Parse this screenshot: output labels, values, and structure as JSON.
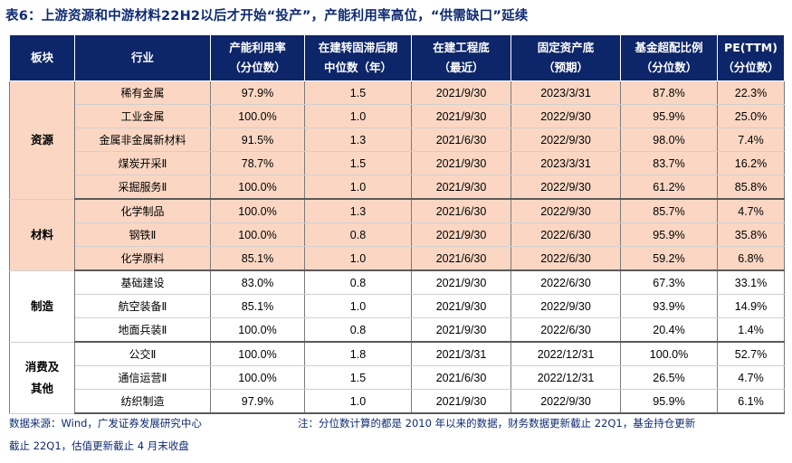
{
  "title": "表6：上游资源和中游材料22H2以后才开始“投产”，产能利用率高位，“供需缺口”延续",
  "header": {
    "sector": "板块",
    "industry": "行业",
    "capacity_util": [
      "产能利用率",
      "（分位数）"
    ],
    "lag": [
      "在建转固滞后期",
      "中位数（年）"
    ],
    "cip_bottom": [
      "在建工程底",
      "（最近）"
    ],
    "fa_bottom": [
      "固定资产底",
      "（预期）"
    ],
    "fund_overweight": [
      "基金超配比例",
      "（分位数）"
    ],
    "pe": [
      "PE(TTM)",
      "（分位数）"
    ]
  },
  "groups": [
    {
      "sector": "资源",
      "rows": [
        {
          "industry": "稀有金属",
          "util": "97.9%",
          "lag": "1.5",
          "cip": "2021/9/30",
          "fa": "2023/3/31",
          "fund": "87.8%",
          "pe": "22.3%"
        },
        {
          "industry": "工业金属",
          "util": "100.0%",
          "lag": "1.0",
          "cip": "2021/9/30",
          "fa": "2022/9/30",
          "fund": "95.9%",
          "pe": "25.0%"
        },
        {
          "industry": "金属非金属新材料",
          "util": "91.5%",
          "lag": "1.3",
          "cip": "2021/6/30",
          "fa": "2022/9/30",
          "fund": "98.0%",
          "pe": "7.4%"
        },
        {
          "industry": "煤炭开采Ⅱ",
          "util": "78.7%",
          "lag": "1.5",
          "cip": "2021/9/30",
          "fa": "2023/3/31",
          "fund": "83.7%",
          "pe": "16.2%"
        },
        {
          "industry": "采掘服务Ⅱ",
          "util": "100.0%",
          "lag": "1.0",
          "cip": "2021/9/30",
          "fa": "2022/9/30",
          "fund": "61.2%",
          "pe": "85.8%"
        }
      ]
    },
    {
      "sector": "材料",
      "rows": [
        {
          "industry": "化学制品",
          "util": "100.0%",
          "lag": "1.3",
          "cip": "2021/6/30",
          "fa": "2022/9/30",
          "fund": "85.7%",
          "pe": "4.7%"
        },
        {
          "industry": "钢铁Ⅱ",
          "util": "100.0%",
          "lag": "0.8",
          "cip": "2021/9/30",
          "fa": "2022/6/30",
          "fund": "95.9%",
          "pe": "35.8%"
        },
        {
          "industry": "化学原料",
          "util": "85.1%",
          "lag": "1.0",
          "cip": "2021/6/30",
          "fa": "2022/6/30",
          "fund": "59.2%",
          "pe": "6.8%"
        }
      ]
    },
    {
      "sector": "制造",
      "rows": [
        {
          "industry": "基础建设",
          "util": "83.0%",
          "lag": "0.8",
          "cip": "2021/9/30",
          "fa": "2022/6/30",
          "fund": "67.3%",
          "pe": "33.1%"
        },
        {
          "industry": "航空装备Ⅱ",
          "util": "85.1%",
          "lag": "1.0",
          "cip": "2021/9/30",
          "fa": "2022/9/30",
          "fund": "93.9%",
          "pe": "14.9%"
        },
        {
          "industry": "地面兵装Ⅱ",
          "util": "100.0%",
          "lag": "0.8",
          "cip": "2021/9/30",
          "fa": "2022/6/30",
          "fund": "20.4%",
          "pe": "1.4%"
        }
      ]
    },
    {
      "sector": "消费及其他",
      "sector_lines": [
        "消费及",
        "其他"
      ],
      "rows": [
        {
          "industry": "公交Ⅱ",
          "util": "100.0%",
          "lag": "1.8",
          "cip": "2021/3/31",
          "fa": "2022/12/31",
          "fund": "100.0%",
          "pe": "52.7%"
        },
        {
          "industry": "通信运营Ⅱ",
          "util": "100.0%",
          "lag": "1.5",
          "cip": "2021/6/30",
          "fa": "2022/12/31",
          "fund": "26.5%",
          "pe": "4.7%"
        },
        {
          "industry": "纺织制造",
          "util": "97.9%",
          "lag": "1.0",
          "cip": "2021/9/30",
          "fa": "2022/9/30",
          "fund": "95.9%",
          "pe": "6.1%"
        }
      ]
    }
  ],
  "source": "数据来源：Wind，广发证券发展研究中心",
  "note": "注：分位数计算的都是 2010 年以来的数据，财务数据更新截止 22Q1，基金持仓更新",
  "note_cont": "截止 22Q1，估值更新截止 4 月末收盘"
}
